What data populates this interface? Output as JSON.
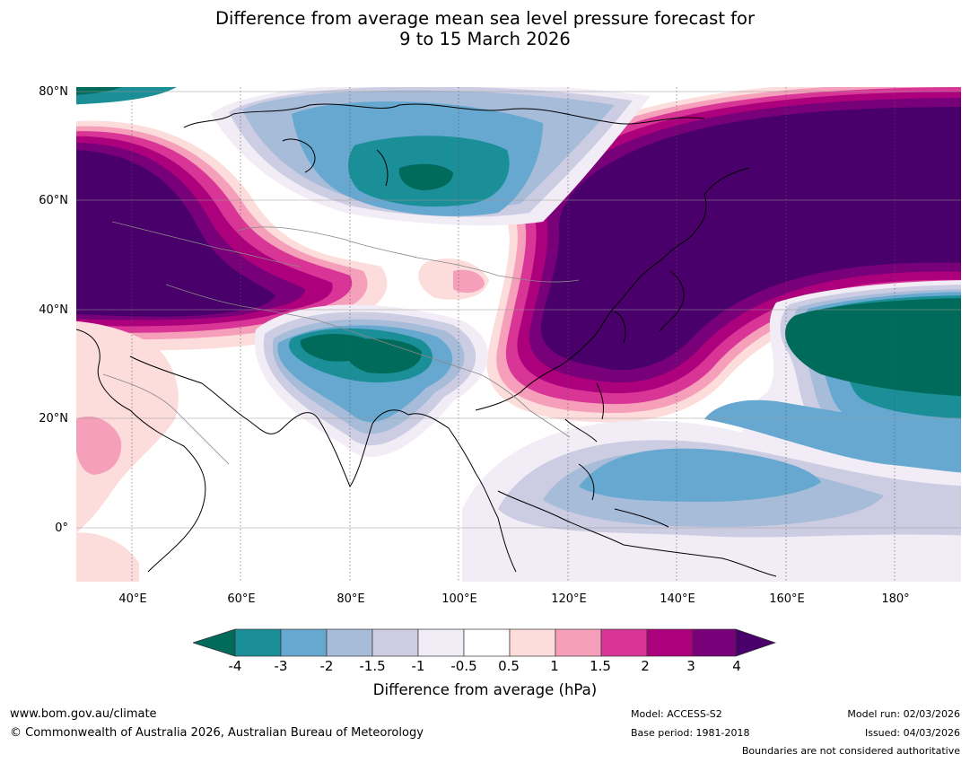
{
  "title": {
    "line1": "Difference from average mean sea level pressure forecast for",
    "line2": "9 to 15 March 2026"
  },
  "map": {
    "lat_labels": [
      "80°N",
      "60°N",
      "40°N",
      "20°N",
      "0°"
    ],
    "lon_labels": [
      "40°E",
      "60°E",
      "80°E",
      "100°E",
      "120°E",
      "140°E",
      "160°E",
      "180°"
    ]
  },
  "colorbar": {
    "ticks": [
      "-4",
      "-3",
      "-2",
      "-1.5",
      "-1",
      "-0.5",
      "0.5",
      "1",
      "1.5",
      "2",
      "3",
      "4"
    ],
    "colors": {
      "lt_minus4": "#006b5a",
      "m4_m3": "#1a8f98",
      "m3_m2": "#67a8d0",
      "m2_m15": "#a6bcd9",
      "m15_m1": "#cccde3",
      "m1_m05": "#f1ecf5",
      "m05_05": "#ffffff",
      "p05_1": "#fddcdc",
      "p1_15": "#f59fba",
      "p15_2": "#d93596",
      "p2_3": "#ad007d",
      "p3_4": "#780078",
      "gt_4": "#4a006a"
    },
    "label": "Difference from average (hPa)"
  },
  "footer": {
    "website": "www.bom.gov.au/climate",
    "copyright": "© Commonwealth of Australia 2026, Australian Bureau of Meteorology",
    "model": "Model: ACCESS-S2",
    "base_period": "Base period: 1981-2018",
    "model_run": "Model run: 02/03/2026",
    "issued": "Issued: 04/03/2026",
    "boundaries": "Boundaries are not considered authoritative"
  }
}
